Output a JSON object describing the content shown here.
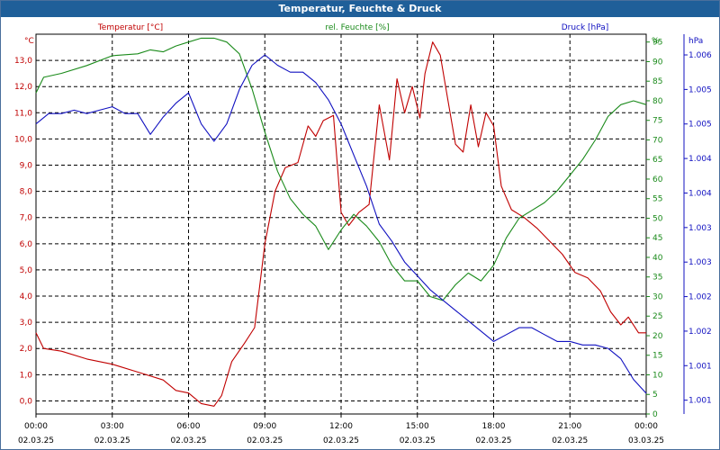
{
  "chart_data": {
    "type": "line",
    "title": "Temperatur, Feuchte & Druck",
    "x_ticks": [
      {
        "time": "00:00",
        "date": "02.03.25"
      },
      {
        "time": "03:00",
        "date": "02.03.25"
      },
      {
        "time": "06:00",
        "date": "02.03.25"
      },
      {
        "time": "09:00",
        "date": "02.03.25"
      },
      {
        "time": "12:00",
        "date": "02.03.25"
      },
      {
        "time": "15:00",
        "date": "02.03.25"
      },
      {
        "time": "18:00",
        "date": "02.03.25"
      },
      {
        "time": "21:00",
        "date": "02.03.25"
      },
      {
        "time": "00:00",
        "date": "03.03.25"
      }
    ],
    "x_range_hours": [
      0,
      24
    ],
    "axes": {
      "temperature": {
        "label": "Temperatur [°C]",
        "unit": "°C",
        "ylim": [
          -0.5,
          14.0
        ],
        "ticks": [
          "0,0",
          "1,0",
          "2,0",
          "3,0",
          "4,0",
          "5,0",
          "6,0",
          "7,0",
          "8,0",
          "9,0",
          "10,0",
          "11,0",
          "12,0",
          "13,0"
        ]
      },
      "humidity": {
        "label": "rel. Feuchte [%]",
        "unit": "%",
        "ylim": [
          0,
          97
        ],
        "ticks": [
          "0",
          "5",
          "10",
          "15",
          "20",
          "25",
          "30",
          "35",
          "40",
          "45",
          "50",
          "55",
          "60",
          "65",
          "70",
          "75",
          "80",
          "85",
          "90",
          "95"
        ]
      },
      "pressure": {
        "label": "Druck [hPa]",
        "unit": "hPa",
        "ylim": [
          1000.8,
          1006.3
        ],
        "ticks": [
          "1.001",
          "1.001",
          "1.002",
          "1.002",
          "1.003",
          "1.003",
          "1.004",
          "1.004",
          "1.005",
          "1.005",
          "1.006"
        ]
      }
    },
    "grid": true,
    "series": [
      {
        "name": "Temperatur [°C]",
        "axis": "temperature",
        "color": "#c00000",
        "points": [
          [
            0,
            2.6
          ],
          [
            0.3,
            2.0
          ],
          [
            1,
            1.9
          ],
          [
            2,
            1.6
          ],
          [
            3,
            1.4
          ],
          [
            4,
            1.1
          ],
          [
            5,
            0.8
          ],
          [
            5.5,
            0.4
          ],
          [
            6,
            0.3
          ],
          [
            6.5,
            -0.1
          ],
          [
            7,
            -0.2
          ],
          [
            7.3,
            0.2
          ],
          [
            7.7,
            1.5
          ],
          [
            8.2,
            2.2
          ],
          [
            8.6,
            2.8
          ],
          [
            9,
            6.0
          ],
          [
            9.4,
            8.0
          ],
          [
            9.8,
            8.9
          ],
          [
            10.3,
            9.1
          ],
          [
            10.7,
            10.5
          ],
          [
            11,
            10.1
          ],
          [
            11.3,
            10.7
          ],
          [
            11.7,
            10.9
          ],
          [
            12,
            7.2
          ],
          [
            12.3,
            6.7
          ],
          [
            12.7,
            7.2
          ],
          [
            13.1,
            7.5
          ],
          [
            13.5,
            11.3
          ],
          [
            13.9,
            9.2
          ],
          [
            14.2,
            12.3
          ],
          [
            14.5,
            11.0
          ],
          [
            14.8,
            12.0
          ],
          [
            15.1,
            10.8
          ],
          [
            15.3,
            12.5
          ],
          [
            15.6,
            13.7
          ],
          [
            15.9,
            13.2
          ],
          [
            16.2,
            11.5
          ],
          [
            16.5,
            9.8
          ],
          [
            16.8,
            9.5
          ],
          [
            17.1,
            11.3
          ],
          [
            17.4,
            9.7
          ],
          [
            17.7,
            11.0
          ],
          [
            18,
            10.5
          ],
          [
            18.3,
            8.2
          ],
          [
            18.7,
            7.3
          ],
          [
            19.2,
            7.0
          ],
          [
            19.7,
            6.6
          ],
          [
            20.2,
            6.1
          ],
          [
            20.7,
            5.6
          ],
          [
            21.2,
            4.9
          ],
          [
            21.7,
            4.7
          ],
          [
            22.2,
            4.2
          ],
          [
            22.6,
            3.4
          ],
          [
            23,
            2.9
          ],
          [
            23.3,
            3.2
          ],
          [
            23.7,
            2.6
          ],
          [
            24,
            2.6
          ]
        ]
      },
      {
        "name": "rel. Feuchte [%]",
        "axis": "humidity",
        "color": "#1a8a1a",
        "points": [
          [
            0,
            82
          ],
          [
            0.3,
            86
          ],
          [
            1,
            87
          ],
          [
            2,
            89
          ],
          [
            3,
            91.5
          ],
          [
            4,
            92
          ],
          [
            4.5,
            93
          ],
          [
            5,
            92.5
          ],
          [
            5.5,
            94
          ],
          [
            6,
            95
          ],
          [
            6.5,
            96
          ],
          [
            7,
            96
          ],
          [
            7.5,
            95
          ],
          [
            8,
            92
          ],
          [
            8.5,
            83
          ],
          [
            9,
            72
          ],
          [
            9.5,
            62
          ],
          [
            10,
            55
          ],
          [
            10.5,
            51
          ],
          [
            11,
            48
          ],
          [
            11.5,
            42
          ],
          [
            12,
            47
          ],
          [
            12.5,
            51
          ],
          [
            13,
            48
          ],
          [
            13.5,
            44
          ],
          [
            14,
            38
          ],
          [
            14.5,
            34
          ],
          [
            15,
            34
          ],
          [
            15.5,
            30
          ],
          [
            16,
            29
          ],
          [
            16.5,
            33
          ],
          [
            17,
            36
          ],
          [
            17.5,
            34
          ],
          [
            18,
            38
          ],
          [
            18.5,
            45
          ],
          [
            19,
            50
          ],
          [
            19.5,
            52
          ],
          [
            20,
            54
          ],
          [
            20.5,
            57
          ],
          [
            21,
            61
          ],
          [
            21.5,
            65
          ],
          [
            22,
            70
          ],
          [
            22.5,
            76
          ],
          [
            23,
            79
          ],
          [
            23.5,
            80
          ],
          [
            24,
            79
          ]
        ]
      },
      {
        "name": "Druck [hPa]",
        "axis": "pressure",
        "color": "#1010c0",
        "points": [
          [
            0,
            1005.0
          ],
          [
            0.5,
            1005.15
          ],
          [
            1,
            1005.15
          ],
          [
            1.5,
            1005.2
          ],
          [
            2,
            1005.15
          ],
          [
            2.5,
            1005.2
          ],
          [
            3,
            1005.25
          ],
          [
            3.5,
            1005.15
          ],
          [
            4,
            1005.15
          ],
          [
            4.5,
            1004.85
          ],
          [
            5,
            1005.1
          ],
          [
            5.5,
            1005.3
          ],
          [
            6,
            1005.45
          ],
          [
            6.5,
            1005.0
          ],
          [
            7,
            1004.75
          ],
          [
            7.5,
            1005.0
          ],
          [
            8,
            1005.5
          ],
          [
            8.5,
            1005.85
          ],
          [
            9,
            1006.0
          ],
          [
            9.5,
            1005.85
          ],
          [
            10,
            1005.75
          ],
          [
            10.5,
            1005.75
          ],
          [
            11,
            1005.6
          ],
          [
            11.5,
            1005.35
          ],
          [
            12,
            1005.0
          ],
          [
            12.5,
            1004.55
          ],
          [
            13,
            1004.1
          ],
          [
            13.5,
            1003.55
          ],
          [
            14,
            1003.3
          ],
          [
            14.5,
            1003.0
          ],
          [
            15,
            1002.8
          ],
          [
            15.5,
            1002.6
          ],
          [
            16,
            1002.45
          ],
          [
            16.5,
            1002.3
          ],
          [
            17,
            1002.15
          ],
          [
            17.5,
            1002.0
          ],
          [
            18,
            1001.85
          ],
          [
            18.5,
            1001.95
          ],
          [
            19,
            1002.05
          ],
          [
            19.5,
            1002.05
          ],
          [
            20,
            1001.95
          ],
          [
            20.5,
            1001.85
          ],
          [
            21,
            1001.85
          ],
          [
            21.5,
            1001.8
          ],
          [
            22,
            1001.8
          ],
          [
            22.5,
            1001.75
          ],
          [
            23,
            1001.6
          ],
          [
            23.5,
            1001.3
          ],
          [
            24,
            1001.1
          ]
        ]
      }
    ]
  }
}
